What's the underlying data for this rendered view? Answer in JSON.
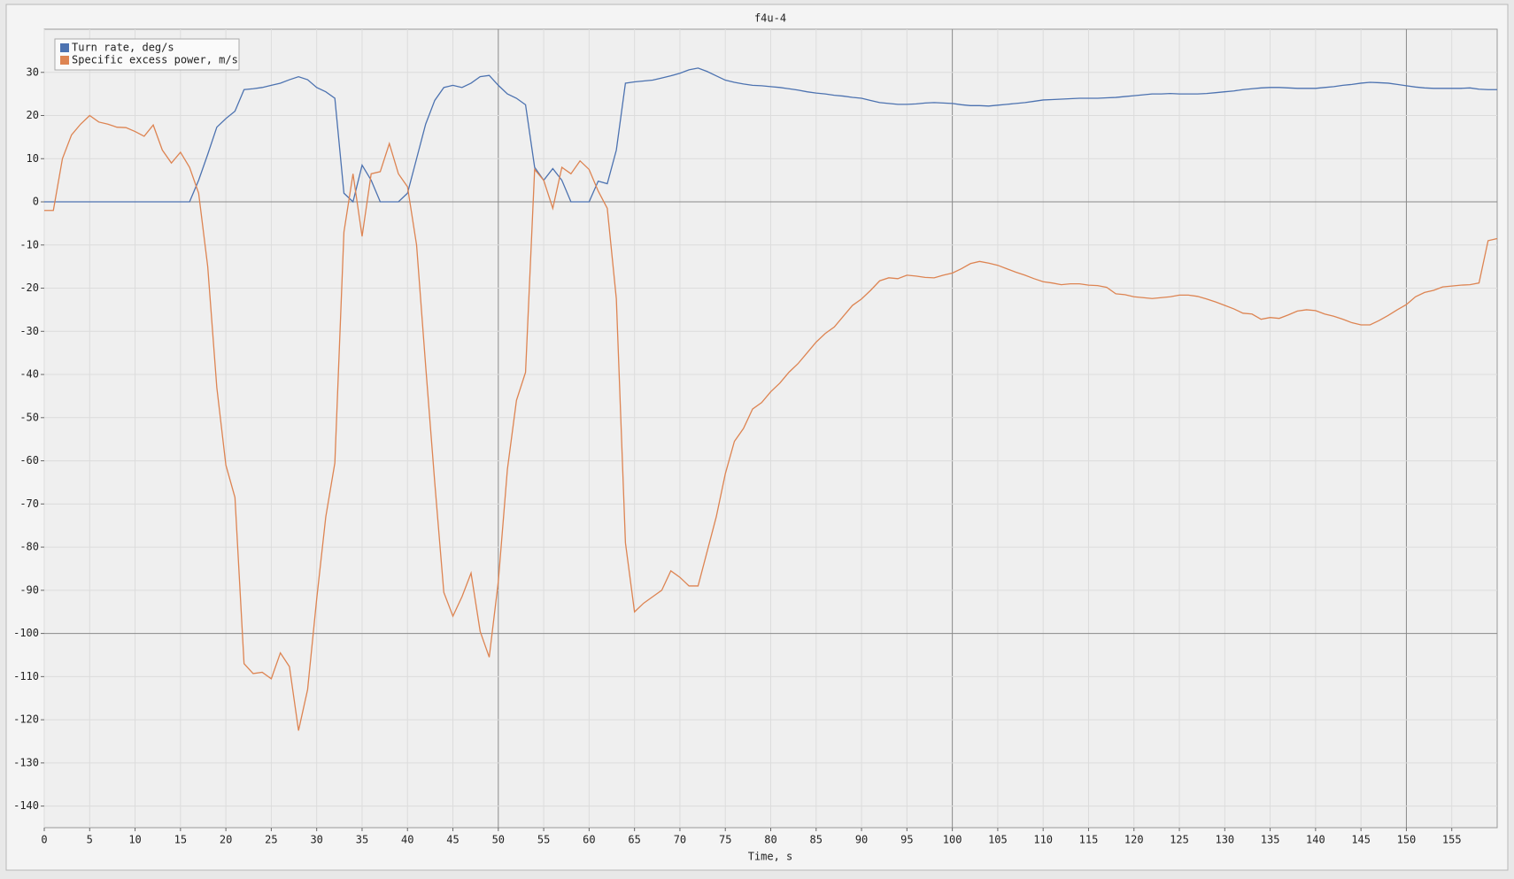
{
  "chart_data": {
    "type": "line",
    "title": "f4u-4",
    "x_label": "Time, s",
    "xlim": [
      0,
      160
    ],
    "ylim": [
      -145,
      40
    ],
    "grid": true,
    "legend": "upper left",
    "xticks": [
      0,
      5,
      10,
      15,
      20,
      25,
      30,
      35,
      40,
      45,
      50,
      55,
      60,
      65,
      70,
      75,
      80,
      85,
      90,
      95,
      100,
      105,
      110,
      115,
      120,
      125,
      130,
      135,
      140,
      145,
      150,
      155
    ],
    "yticks": [
      30,
      20,
      10,
      0,
      -10,
      -20,
      -30,
      -40,
      -50,
      -60,
      -70,
      -80,
      -90,
      -100,
      -110,
      -120,
      -130,
      -140
    ],
    "x": [
      0,
      1,
      2,
      3,
      4,
      5,
      6,
      7,
      8,
      9,
      10,
      11,
      12,
      13,
      14,
      15,
      16,
      17,
      18,
      19,
      20,
      21,
      22,
      23,
      24,
      25,
      26,
      27,
      28,
      29,
      30,
      31,
      32,
      33,
      34,
      35,
      36,
      37,
      38,
      39,
      40,
      41,
      42,
      43,
      44,
      45,
      46,
      47,
      48,
      49,
      50,
      51,
      52,
      53,
      54,
      55,
      56,
      57,
      58,
      59,
      60,
      61,
      62,
      63,
      64,
      65,
      66,
      67,
      68,
      69,
      70,
      71,
      72,
      73,
      74,
      75,
      76,
      77,
      78,
      79,
      80,
      81,
      82,
      83,
      84,
      85,
      86,
      87,
      88,
      89,
      90,
      91,
      92,
      93,
      94,
      95,
      96,
      97,
      98,
      99,
      100,
      101,
      102,
      103,
      104,
      105,
      106,
      107,
      108,
      109,
      110,
      111,
      112,
      113,
      114,
      115,
      116,
      117,
      118,
      119,
      120,
      121,
      122,
      123,
      124,
      125,
      126,
      127,
      128,
      129,
      130,
      131,
      132,
      133,
      134,
      135,
      136,
      137,
      138,
      139,
      140,
      141,
      142,
      143,
      144,
      145,
      146,
      147,
      148,
      149,
      150,
      151,
      152,
      153,
      154,
      155,
      156,
      157,
      158,
      159,
      160
    ],
    "series": [
      {
        "name": "Turn rate, deg/s",
        "color": "#4c72b0",
        "values": [
          0,
          0,
          0,
          0,
          0,
          0,
          0,
          0,
          0,
          0,
          0,
          0,
          0,
          0,
          0,
          0,
          0,
          5,
          11,
          17.3,
          19.3,
          21,
          26,
          26.2,
          26.5,
          27,
          27.5,
          28.3,
          29,
          28.3,
          26.5,
          25.5,
          24,
          2,
          0,
          8.5,
          5,
          0,
          0,
          0,
          2,
          10,
          18,
          23.5,
          26.5,
          27,
          26.5,
          27.5,
          29,
          29.3,
          27,
          25,
          24,
          22.5,
          8,
          5,
          7.7,
          5,
          0,
          0,
          0,
          4.8,
          4.2,
          12,
          27.5,
          27.8,
          28,
          28.2,
          28.7,
          29.2,
          29.8,
          30.6,
          31,
          30.2,
          29.2,
          28.2,
          27.7,
          27.3,
          27,
          26.9,
          26.7,
          26.5,
          26.2,
          25.9,
          25.5,
          25.2,
          25,
          24.7,
          24.5,
          24.2,
          24,
          23.5,
          23,
          22.8,
          22.6,
          22.6,
          22.7,
          22.9,
          23,
          22.9,
          22.8,
          22.5,
          22.3,
          22.3,
          22.2,
          22.4,
          22.6,
          22.8,
          23,
          23.3,
          23.6,
          23.7,
          23.8,
          23.9,
          24,
          24,
          24,
          24.1,
          24.2,
          24.4,
          24.6,
          24.8,
          25,
          25,
          25.1,
          25,
          25,
          25,
          25.1,
          25.3,
          25.5,
          25.7,
          26,
          26.2,
          26.4,
          26.5,
          26.5,
          26.4,
          26.3,
          26.3,
          26.3,
          26.5,
          26.7,
          27,
          27.2,
          27.5,
          27.7,
          27.6,
          27.5,
          27.2,
          26.9,
          26.6,
          26.4,
          26.3,
          26.3,
          26.3,
          26.3,
          26.4,
          26.1,
          26,
          26
        ]
      },
      {
        "name": "Specific excess power, m/s",
        "color": "#dd8452",
        "values": [
          -2,
          -2,
          10,
          15.5,
          18,
          20,
          18.5,
          18,
          17.3,
          17.2,
          16.3,
          15.2,
          17.8,
          12,
          9,
          11.5,
          8,
          2,
          -15,
          -43,
          -61,
          -68.5,
          -107,
          -109.3,
          -109,
          -110.5,
          -104.5,
          -107.7,
          -122.5,
          -113,
          -92,
          -73,
          -60.5,
          -7,
          6.5,
          -8,
          6.5,
          7,
          13.5,
          6.5,
          3.5,
          -10,
          -38,
          -65,
          -90.5,
          -96,
          -91.5,
          -86,
          -99.5,
          -105.5,
          -88,
          -62,
          -46,
          -39.5,
          7.5,
          5,
          -1.5,
          8,
          6.5,
          9.5,
          7.5,
          2.5,
          -1.5,
          -22.5,
          -79,
          -95,
          -93,
          -91.5,
          -90,
          -85.5,
          -87,
          -89,
          -89,
          -81,
          -73,
          -63,
          -55.5,
          -52.5,
          -48,
          -46.5,
          -44,
          -42,
          -39.5,
          -37.5,
          -35,
          -32.5,
          -30.5,
          -29,
          -26.5,
          -24,
          -22.5,
          -20.5,
          -18.3,
          -17.6,
          -17.8,
          -17,
          -17.2,
          -17.5,
          -17.6,
          -17,
          -16.5,
          -15.5,
          -14.3,
          -13.8,
          -14.2,
          -14.7,
          -15.5,
          -16.3,
          -17,
          -17.8,
          -18.5,
          -18.8,
          -19.2,
          -19,
          -19,
          -19.3,
          -19.4,
          -19.8,
          -21.3,
          -21.5,
          -22,
          -22.2,
          -22.4,
          -22.2,
          -22,
          -21.6,
          -21.6,
          -21.9,
          -22.5,
          -23.2,
          -24,
          -24.8,
          -25.8,
          -26,
          -27.2,
          -26.8,
          -27,
          -26.2,
          -25.3,
          -25,
          -25.2,
          -26,
          -26.5,
          -27.2,
          -28,
          -28.5,
          -28.5,
          -27.5,
          -26.3,
          -25,
          -23.8,
          -22,
          -21,
          -20.5,
          -19.7,
          -19.5,
          -19.3,
          -19.2,
          -18.8,
          -9,
          -8.5
        ]
      }
    ]
  }
}
